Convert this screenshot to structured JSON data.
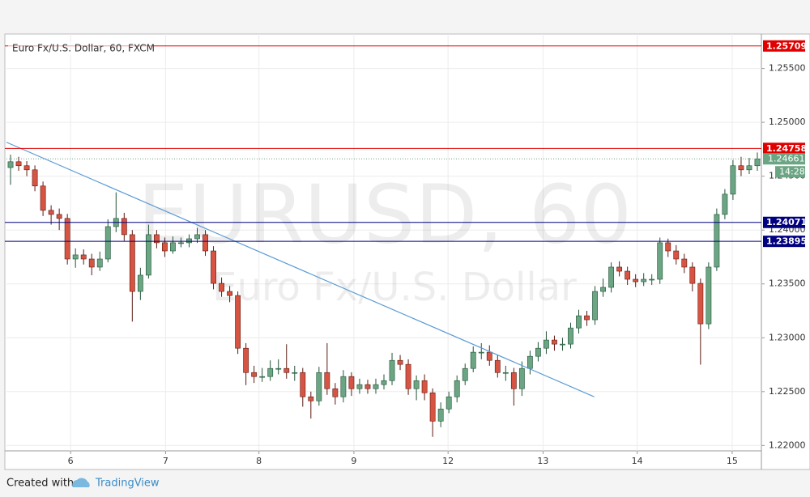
{
  "chart_data": {
    "type": "candlestick",
    "title": "Euro Fx/U.S. Dollar, 60, FXCM",
    "watermark": "EURUSD, 60",
    "watermark_subtitle": "Euro Fx/U.S. Dollar",
    "x": [
      0,
      1,
      2,
      3,
      4,
      5,
      6,
      7,
      8,
      9,
      10,
      11,
      12,
      13,
      14,
      15,
      16,
      17,
      18,
      19,
      20,
      21,
      22,
      23,
      24,
      25,
      26,
      27,
      28,
      29,
      30,
      31,
      32,
      33,
      34,
      35,
      36,
      37,
      38,
      39,
      40,
      41,
      42,
      43,
      44,
      45,
      46,
      47,
      48,
      49,
      50,
      51,
      52,
      53,
      54,
      55,
      56,
      57,
      58,
      59,
      60,
      61,
      62,
      63,
      64,
      65,
      66,
      67,
      68,
      69,
      70,
      71,
      72,
      73,
      74,
      75,
      76,
      77,
      78,
      79,
      80,
      81,
      82,
      83,
      84,
      85,
      86,
      87,
      88,
      89,
      90,
      91,
      92
    ],
    "open": [
      1.2458,
      1.24634,
      1.24597,
      1.24559,
      1.24409,
      1.24183,
      1.24145,
      1.24108,
      1.23731,
      1.23769,
      1.23731,
      1.23656,
      1.23731,
      1.24032,
      1.24108,
      1.23957,
      1.2343,
      1.23581,
      1.23957,
      1.23882,
      1.23806,
      1.23882,
      1.23882,
      1.23919,
      1.23957,
      1.23806,
      1.23505,
      1.2343,
      1.23392,
      1.22903,
      1.22677,
      1.2264,
      1.2264,
      1.22715,
      1.22715,
      1.22677,
      1.22677,
      1.22452,
      1.22414,
      1.22677,
      1.22527,
      1.22452,
      1.2264,
      1.22527,
      1.22565,
      1.22527,
      1.22565,
      1.22602,
      1.2279,
      1.22753,
      1.22527,
      1.22602,
      1.22489,
      1.22226,
      1.22339,
      1.22452,
      1.22602,
      1.22715,
      1.22866,
      1.22866,
      1.2279,
      1.22677,
      1.22677,
      1.22527,
      1.22715,
      1.22828,
      1.22903,
      1.22979,
      1.22941,
      1.22941,
      1.23091,
      1.23204,
      1.23167,
      1.2343,
      1.23468,
      1.23656,
      1.23618,
      1.23543,
      1.2352,
      1.23543,
      1.23543,
      1.23882,
      1.23806,
      1.23731,
      1.23656,
      1.23505,
      1.23129,
      1.23656,
      1.24145,
      1.24333,
      1.24597,
      1.24559,
      1.24597
    ],
    "high": [
      1.247,
      1.2468,
      1.2464,
      1.246,
      1.2445,
      1.2423,
      1.242,
      1.2415,
      1.2383,
      1.2382,
      1.2378,
      1.238,
      1.241,
      1.2435,
      1.2416,
      1.24,
      1.2365,
      1.2405,
      1.24,
      1.2393,
      1.2394,
      1.2393,
      1.2396,
      1.2402,
      1.24,
      1.2385,
      1.2356,
      1.2348,
      1.2343,
      1.2295,
      1.2274,
      1.2272,
      1.2279,
      1.228,
      1.2294,
      1.2274,
      1.2272,
      1.225,
      1.2273,
      1.2295,
      1.2258,
      1.227,
      1.2268,
      1.2262,
      1.2261,
      1.2262,
      1.2266,
      1.2286,
      1.2284,
      1.228,
      1.2265,
      1.2266,
      1.2253,
      1.224,
      1.225,
      1.2265,
      1.2276,
      1.2292,
      1.2295,
      1.2293,
      1.2284,
      1.2274,
      1.2272,
      1.2278,
      1.2288,
      1.2296,
      1.2306,
      1.2302,
      1.23,
      1.2314,
      1.2326,
      1.2325,
      1.2348,
      1.2355,
      1.237,
      1.2371,
      1.2366,
      1.2359,
      1.236,
      1.2359,
      1.2393,
      1.2392,
      1.2386,
      1.2378,
      1.237,
      1.2355,
      1.237,
      1.242,
      1.2438,
      1.2465,
      1.2468,
      1.2467,
      1.2472
    ],
    "low": [
      1.2442,
      1.2455,
      1.245,
      1.2436,
      1.2413,
      1.2405,
      1.24,
      1.2368,
      1.2365,
      1.2368,
      1.2358,
      1.2362,
      1.237,
      1.2398,
      1.239,
      1.2315,
      1.2335,
      1.2355,
      1.2383,
      1.2375,
      1.2378,
      1.2384,
      1.2384,
      1.2388,
      1.2376,
      1.2345,
      1.2338,
      1.2333,
      1.2285,
      1.2256,
      1.2258,
      1.2259,
      1.226,
      1.2266,
      1.2262,
      1.226,
      1.2236,
      1.2225,
      1.2237,
      1.2247,
      1.2238,
      1.224,
      1.2246,
      1.2248,
      1.2248,
      1.2248,
      1.2252,
      1.2256,
      1.227,
      1.2247,
      1.2242,
      1.2242,
      1.2208,
      1.2217,
      1.223,
      1.224,
      1.2256,
      1.2268,
      1.228,
      1.2274,
      1.2263,
      1.226,
      1.2237,
      1.2246,
      1.2266,
      1.2278,
      1.2285,
      1.2288,
      1.2288,
      1.229,
      1.2304,
      1.2311,
      1.2312,
      1.2338,
      1.2342,
      1.2357,
      1.2349,
      1.2347,
      1.2348,
      1.2349,
      1.235,
      1.2375,
      1.2368,
      1.236,
      1.2343,
      1.2275,
      1.2308,
      1.2362,
      1.241,
      1.2428,
      1.245,
      1.2452,
      1.2455
    ],
    "close": [
      1.24634,
      1.24597,
      1.24559,
      1.24409,
      1.24183,
      1.24145,
      1.24108,
      1.23731,
      1.23769,
      1.23731,
      1.23656,
      1.23731,
      1.24032,
      1.24108,
      1.23957,
      1.2343,
      1.23581,
      1.23957,
      1.23882,
      1.23806,
      1.23882,
      1.23882,
      1.23919,
      1.23957,
      1.23806,
      1.23505,
      1.2343,
      1.23392,
      1.22903,
      1.22677,
      1.2264,
      1.2264,
      1.22715,
      1.22715,
      1.22677,
      1.22677,
      1.22452,
      1.22414,
      1.22677,
      1.22527,
      1.22452,
      1.2264,
      1.22527,
      1.22565,
      1.22527,
      1.22565,
      1.22602,
      1.2279,
      1.22753,
      1.22527,
      1.22602,
      1.22489,
      1.22226,
      1.22339,
      1.22452,
      1.22602,
      1.22715,
      1.22866,
      1.22866,
      1.2279,
      1.22677,
      1.22677,
      1.22527,
      1.22715,
      1.22828,
      1.22903,
      1.22979,
      1.22941,
      1.22941,
      1.23091,
      1.23204,
      1.23167,
      1.2343,
      1.23468,
      1.23656,
      1.23618,
      1.23543,
      1.2352,
      1.23543,
      1.23543,
      1.23882,
      1.23806,
      1.23731,
      1.23656,
      1.23505,
      1.23129,
      1.23656,
      1.24145,
      1.24333,
      1.24597,
      1.24559,
      1.24597,
      1.24661
    ],
    "up_color": "#6ba583",
    "down_color": "#d75442",
    "xlim": [
      -0.5,
      92.5
    ],
    "xticks": [
      {
        "value": 7.4,
        "label": "6"
      },
      {
        "value": 19.1,
        "label": "7"
      },
      {
        "value": 30.6,
        "label": "8"
      },
      {
        "value": 42.3,
        "label": "9"
      },
      {
        "value": 53.9,
        "label": "12"
      },
      {
        "value": 65.6,
        "label": "13"
      },
      {
        "value": 77.2,
        "label": "14"
      },
      {
        "value": 88.9,
        "label": "15"
      }
    ],
    "ylim": [
      1.2195,
      1.2582
    ],
    "yticks": [
      {
        "value": 1.22,
        "label": "1.22000"
      },
      {
        "value": 1.225,
        "label": "1.22500"
      },
      {
        "value": 1.23,
        "label": "1.23000"
      },
      {
        "value": 1.235,
        "label": "1.23500"
      },
      {
        "value": 1.24,
        "label": "1.24000"
      },
      {
        "value": 1.245,
        "label": "1.24500"
      },
      {
        "value": 1.25,
        "label": "1.25000"
      },
      {
        "value": 1.255,
        "label": "1.25500"
      }
    ],
    "grid": true,
    "levels": [
      {
        "value": 1.25709,
        "color": "#e00000"
      },
      {
        "value": 1.24758,
        "color": "#e00000"
      },
      {
        "value": 1.24071,
        "color": "#000080"
      },
      {
        "value": 1.23895,
        "color": "#000080"
      }
    ],
    "last_price": 1.24661,
    "countdown": "14:28",
    "trendline": {
      "x": [
        -0.5,
        71.9
      ],
      "y": [
        1.24815,
        1.22452
      ],
      "color": "#5b9bd5"
    }
  },
  "footer": {
    "text": "Created with",
    "brand": "TradingView"
  }
}
